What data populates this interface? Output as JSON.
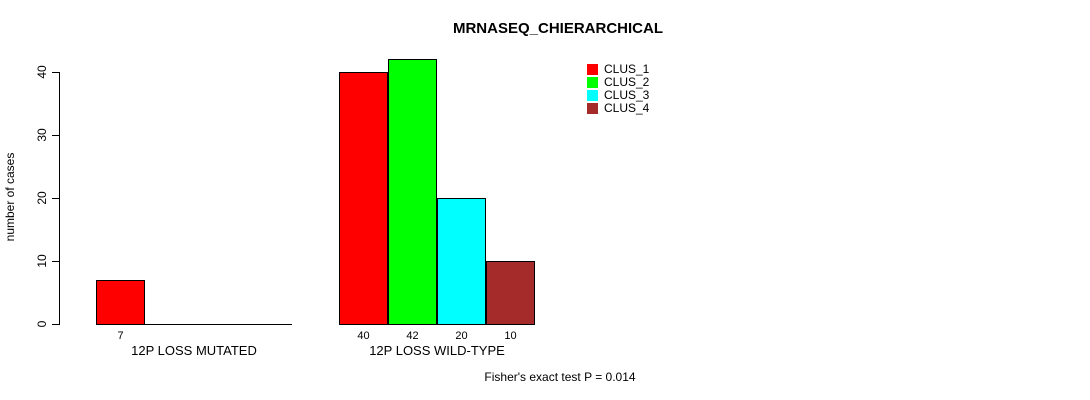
{
  "title": "MRNASEQ_CHIERARCHICAL",
  "chart_data": {
    "type": "bar",
    "title": "MRNASEQ_CHIERARCHICAL",
    "xlabel": "",
    "ylabel": "number of cases",
    "ylim": [
      0,
      40
    ],
    "yticks": [
      0,
      10,
      20,
      30,
      40
    ],
    "grid": false,
    "legend_position": "top-right",
    "categories": [
      "12P LOSS MUTATED",
      "12P LOSS WILD-TYPE"
    ],
    "series": [
      {
        "name": "CLUS_1",
        "color": "#FF0000",
        "values": [
          7,
          40
        ]
      },
      {
        "name": "CLUS_2",
        "color": "#00FF00",
        "values": [
          0,
          42
        ]
      },
      {
        "name": "CLUS_3",
        "color": "#00FFFF",
        "values": [
          0,
          20
        ]
      },
      {
        "name": "CLUS_4",
        "color": "#A52A2A",
        "values": [
          0,
          10
        ]
      }
    ],
    "bar_value_labels": [
      [
        7,
        null,
        null,
        null
      ],
      [
        40,
        42,
        20,
        10
      ]
    ],
    "annotation": "Fisher's exact test P = 0.014"
  },
  "colors": {
    "axis": "#000000",
    "background": "#FFFFFF",
    "clus_1": "#FF0000",
    "clus_2": "#00FF00",
    "clus_3": "#00FFFF",
    "clus_4": "#A52A2A"
  }
}
